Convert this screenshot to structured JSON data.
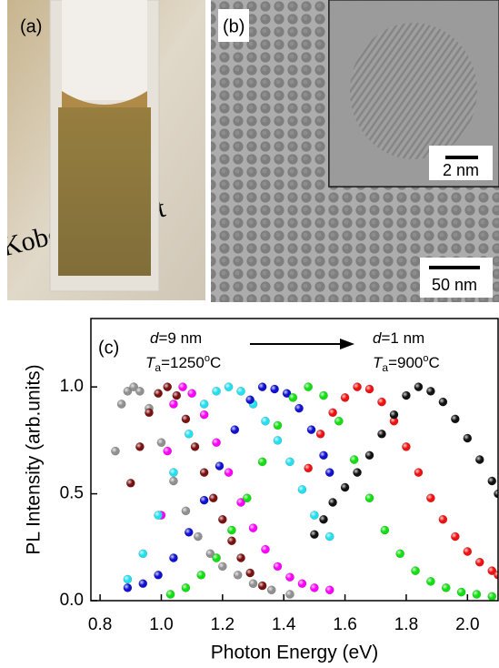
{
  "panels": {
    "a": {
      "label": "(a)",
      "photo_text": "Kobe Universit"
    },
    "b": {
      "label": "(b)",
      "inset_scale": "2 nm",
      "scale": "50 nm"
    }
  },
  "chart_data": {
    "type": "scatter",
    "panel_label": "(c)",
    "annotations": [
      [
        "d",
        "=9 nm"
      ],
      [
        "T",
        "a",
        "=1250",
        "o",
        "C"
      ],
      [
        "d",
        "=1 nm"
      ],
      [
        "T",
        "a",
        "=900",
        "o",
        "C"
      ]
    ],
    "x_label": "Photon Energy (eV)",
    "y_label": "PL Intensity (arb.units)",
    "xlim": [
      0.77,
      2.1
    ],
    "ylim": [
      0,
      1.32
    ],
    "xticks": [
      0.8,
      {
        "value": 1.0,
        "label": "1.0"
      },
      1.2,
      1.4,
      1.6,
      1.8,
      {
        "value": 2.0,
        "label": "2.0"
      }
    ],
    "yticks": [
      {
        "value": 0.0,
        "label": "0.0"
      },
      0.5,
      {
        "value": 1.0,
        "label": "1.0"
      }
    ],
    "series": [
      {
        "color": "#909090",
        "x": [
          0.85,
          0.87,
          0.89,
          0.91,
          0.93,
          0.96,
          1.0,
          1.04,
          1.08,
          1.12,
          1.16,
          1.2,
          1.25,
          1.3,
          1.36,
          1.42
        ],
        "values": [
          0.7,
          0.92,
          0.98,
          1.0,
          0.98,
          0.9,
          0.74,
          0.56,
          0.42,
          0.3,
          0.22,
          0.16,
          0.12,
          0.08,
          0.05,
          0.03
        ]
      },
      {
        "color": "#7a1010",
        "x": [
          0.9,
          0.93,
          0.96,
          0.99,
          1.02,
          1.05,
          1.08,
          1.11,
          1.14,
          1.17,
          1.2,
          1.23,
          1.26,
          1.29,
          1.33
        ],
        "values": [
          0.55,
          0.72,
          0.88,
          0.97,
          1.0,
          0.96,
          0.85,
          0.72,
          0.6,
          0.48,
          0.38,
          0.28,
          0.2,
          0.13,
          0.07
        ]
      },
      {
        "color": "#ff00ff",
        "x": [
          1.0,
          1.02,
          1.04,
          1.07,
          1.1,
          1.14,
          1.18,
          1.22,
          1.26,
          1.3,
          1.34,
          1.38,
          1.42,
          1.46,
          1.5,
          1.55
        ],
        "values": [
          0.4,
          0.7,
          0.92,
          1.0,
          0.97,
          0.87,
          0.74,
          0.6,
          0.46,
          0.34,
          0.24,
          0.16,
          0.11,
          0.08,
          0.06,
          0.05
        ]
      },
      {
        "color": "#22e0f0",
        "x": [
          0.89,
          0.94,
          0.99,
          1.04,
          1.09,
          1.14,
          1.18,
          1.22,
          1.26,
          1.3,
          1.34,
          1.38,
          1.42,
          1.46,
          1.5,
          1.55
        ],
        "values": [
          0.1,
          0.22,
          0.4,
          0.6,
          0.78,
          0.92,
          0.98,
          1.0,
          0.98,
          0.92,
          0.84,
          0.75,
          0.65,
          0.52,
          0.4,
          0.3
        ]
      },
      {
        "color": "#1010d0",
        "x": [
          0.89,
          0.94,
          0.99,
          1.04,
          1.09,
          1.14,
          1.19,
          1.24,
          1.29,
          1.33,
          1.37,
          1.41,
          1.45,
          1.49,
          1.53,
          1.55
        ],
        "values": [
          0.06,
          0.08,
          0.12,
          0.2,
          0.32,
          0.47,
          0.63,
          0.8,
          0.94,
          1.0,
          0.99,
          0.97,
          0.9,
          0.8,
          0.68,
          0.6
        ]
      },
      {
        "color": "#10e010",
        "x": [
          1.03,
          1.08,
          1.13,
          1.18,
          1.23,
          1.28,
          1.33,
          1.38,
          1.43,
          1.48,
          1.53,
          1.58,
          1.63,
          1.68,
          1.73,
          1.78,
          1.83,
          1.88,
          1.93,
          1.98,
          2.03,
          2.08
        ],
        "values": [
          0.03,
          0.06,
          0.12,
          0.2,
          0.33,
          0.48,
          0.65,
          0.82,
          0.95,
          1.0,
          0.96,
          0.84,
          0.66,
          0.48,
          0.33,
          0.22,
          0.14,
          0.09,
          0.06,
          0.04,
          0.03,
          0.02
        ]
      },
      {
        "color": "#f01010",
        "x": [
          1.48,
          1.52,
          1.56,
          1.6,
          1.64,
          1.68,
          1.72,
          1.76,
          1.8,
          1.84,
          1.88,
          1.92,
          1.96,
          2.0,
          2.04,
          2.08,
          2.1
        ],
        "values": [
          0.62,
          0.78,
          0.88,
          0.95,
          1.0,
          0.99,
          0.93,
          0.84,
          0.72,
          0.6,
          0.48,
          0.38,
          0.3,
          0.23,
          0.18,
          0.14,
          0.12
        ]
      },
      {
        "color": "#111111",
        "x": [
          1.5,
          1.53,
          1.56,
          1.6,
          1.64,
          1.68,
          1.72,
          1.76,
          1.8,
          1.84,
          1.88,
          1.92,
          1.96,
          2.0,
          2.04,
          2.08,
          2.1
        ],
        "values": [
          0.31,
          0.38,
          0.46,
          0.53,
          0.6,
          0.68,
          0.78,
          0.87,
          0.96,
          1.0,
          0.98,
          0.93,
          0.85,
          0.76,
          0.66,
          0.56,
          0.5
        ]
      }
    ]
  }
}
